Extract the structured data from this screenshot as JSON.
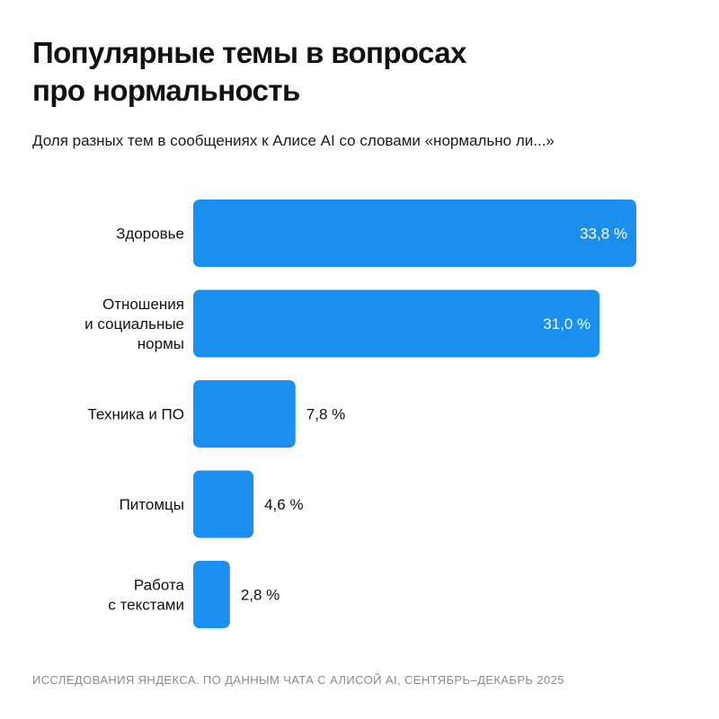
{
  "header": {
    "title_line1": "Популярные темы в вопросах",
    "title_line2": "про нормальность",
    "subtitle": "Доля разных тем в сообщениях к Алисе AI со словами «нормально ли...»"
  },
  "footer": {
    "source": "ИССЛЕДОВАНИЯ ЯНДЕКСА. ПО ДАННЫМ ЧАТА С АЛИСОЙ AI, СЕНТЯБРЬ–ДЕКАБРЬ 2025"
  },
  "colors": {
    "bar": "#1a8ff0",
    "label_inside": "#ffffff",
    "label_outside": "#111111",
    "category": "#111111"
  },
  "chart_data": {
    "type": "bar",
    "orientation": "horizontal",
    "title": "Популярные темы в вопросах про нормальность",
    "subtitle": "Доля разных тем в сообщениях к Алисе AI со словами «нормально ли...»",
    "categories": [
      [
        "Здоровье"
      ],
      [
        "Отношения",
        "и социальные",
        "нормы"
      ],
      [
        "Техника и ПО"
      ],
      [
        "Питомцы"
      ],
      [
        "Работа",
        "с текстами"
      ]
    ],
    "values": [
      33.8,
      31.0,
      7.8,
      4.6,
      2.8
    ],
    "value_labels": [
      "33,8 %",
      "31,0 %",
      "7,8 %",
      "4,6 %",
      "2,8 %"
    ],
    "unit": "%",
    "xlim": [
      0,
      33.8
    ],
    "grid": false,
    "legend": "none"
  }
}
